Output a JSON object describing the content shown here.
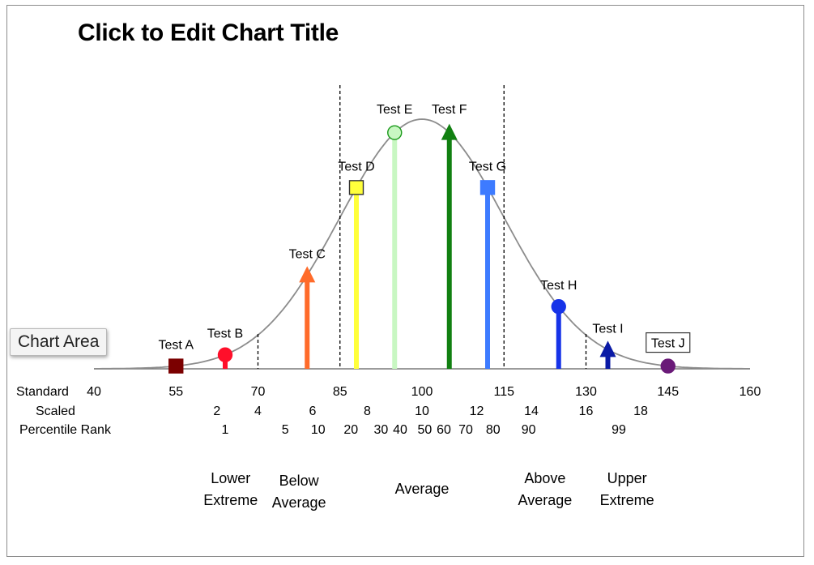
{
  "chart_data": {
    "type": "line",
    "title": "Click to Edit Chart Title",
    "xlim": [
      40,
      160
    ],
    "curve": {
      "mean": 100,
      "sd": 15,
      "color": "#8c8c8c"
    },
    "standard_ticks": [
      40,
      55,
      70,
      85,
      100,
      115,
      130,
      145,
      160
    ],
    "scaled_ticks": [
      {
        "x": 62.5,
        "label": "2"
      },
      {
        "x": 70,
        "label": "4"
      },
      {
        "x": 80,
        "label": "6"
      },
      {
        "x": 90,
        "label": "8"
      },
      {
        "x": 100,
        "label": "10"
      },
      {
        "x": 110,
        "label": "12"
      },
      {
        "x": 120,
        "label": "14"
      },
      {
        "x": 130,
        "label": "16"
      },
      {
        "x": 140,
        "label": "18"
      }
    ],
    "percentile_ticks": [
      {
        "x": 64,
        "label": "1"
      },
      {
        "x": 75,
        "label": "5"
      },
      {
        "x": 81,
        "label": "10"
      },
      {
        "x": 87,
        "label": "20"
      },
      {
        "x": 92.5,
        "label": "30"
      },
      {
        "x": 96,
        "label": "40"
      },
      {
        "x": 100.5,
        "label": "50"
      },
      {
        "x": 104,
        "label": "60"
      },
      {
        "x": 108,
        "label": "70"
      },
      {
        "x": 113,
        "label": "80"
      },
      {
        "x": 119.5,
        "label": "90"
      },
      {
        "x": 136,
        "label": "99"
      }
    ],
    "row_labels": {
      "standard": "Standard",
      "scaled": "Scaled",
      "percentile": "Percentile Rank"
    },
    "dividers": [
      {
        "x": 70,
        "top": 0.0031
      },
      {
        "x": 85,
        "top": 1.0
      },
      {
        "x": 115,
        "top": 1.0
      },
      {
        "x": 130,
        "top": 0.0031
      }
    ],
    "ranges": [
      {
        "x": 65,
        "lines": [
          "Lower",
          "Extreme"
        ]
      },
      {
        "x": 77.5,
        "lines": [
          "Below",
          "Average"
        ]
      },
      {
        "x": 100,
        "lines": [
          "Average"
        ]
      },
      {
        "x": 122.5,
        "lines": [
          "Above",
          "Average"
        ]
      },
      {
        "x": 137.5,
        "lines": [
          "Upper",
          "Extreme"
        ]
      }
    ],
    "tests": [
      {
        "name": "Test A",
        "score": 55,
        "color": "#7b0000",
        "marker": "square",
        "bar": false,
        "boxed": false
      },
      {
        "name": "Test B",
        "score": 64,
        "color": "#ff0f2a",
        "marker": "circle",
        "bar": true,
        "boxed": false
      },
      {
        "name": "Test C",
        "score": 79,
        "color": "#ff6b2a",
        "marker": "triangle",
        "bar": true,
        "boxed": false
      },
      {
        "name": "Test D",
        "score": 88,
        "color": "#ffff3b",
        "marker": "square",
        "bar": true,
        "boxed": false
      },
      {
        "name": "Test E",
        "score": 95,
        "color": "#c8f7c2",
        "marker": "circle",
        "bar": true,
        "boxed": false
      },
      {
        "name": "Test F",
        "score": 105,
        "color": "#118011",
        "marker": "triangle",
        "bar": true,
        "boxed": false
      },
      {
        "name": "Test G",
        "score": 112,
        "color": "#3d7bff",
        "marker": "square",
        "bar": true,
        "boxed": false
      },
      {
        "name": "Test H",
        "score": 125,
        "color": "#1633e8",
        "marker": "circle",
        "bar": true,
        "boxed": false
      },
      {
        "name": "Test I",
        "score": 134,
        "color": "#0a1aa6",
        "marker": "triangle",
        "bar": true,
        "boxed": false
      },
      {
        "name": "Test J",
        "score": 145,
        "color": "#6a1a78",
        "marker": "circle",
        "bar": false,
        "boxed": true
      }
    ]
  },
  "ui": {
    "tooltip": "Chart Area"
  }
}
